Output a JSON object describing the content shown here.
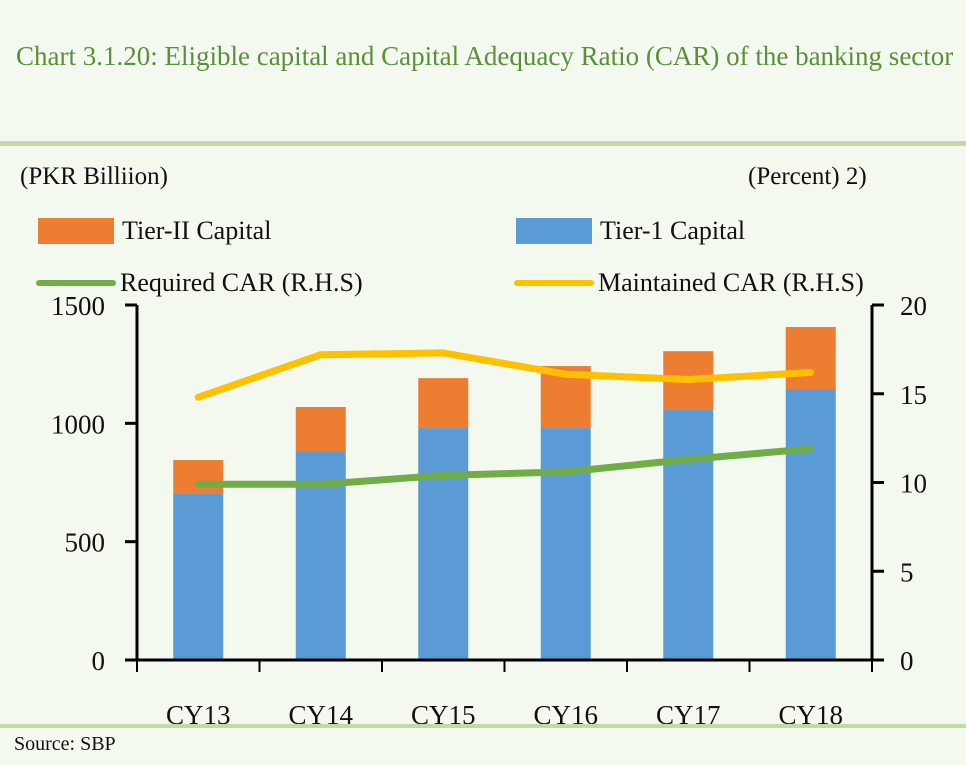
{
  "chart_data": {
    "type": "bar",
    "title": "Chart 3.1.20: Eligible capital and Capital Adequacy Ratio (CAR) of the banking sector",
    "ylabel_left": "(PKR Billiion)",
    "ylabel_right": "(Percent) 2)",
    "categories": [
      "CY13",
      "CY14",
      "CY15",
      "CY16",
      "CY17",
      "CY18"
    ],
    "left_axis": {
      "ylim": [
        0,
        1500
      ],
      "ticks": [
        "0",
        "500",
        "1000",
        "1500"
      ]
    },
    "right_axis": {
      "ylim": [
        0,
        20
      ],
      "ticks": [
        "0",
        "5",
        "10",
        "15",
        "20"
      ]
    },
    "series": [
      {
        "name": "Tier-1 Capital",
        "type": "bar",
        "stack": true,
        "axis": "left",
        "color": "#5b9bd5",
        "values": [
          705,
          883,
          980,
          980,
          1056,
          1145
        ]
      },
      {
        "name": "Tier-II Capital",
        "type": "bar",
        "stack": true,
        "axis": "left",
        "color": "#ed7d31",
        "values": [
          140,
          186,
          211,
          262,
          249,
          262
        ]
      },
      {
        "name": "Required CAR (R.H.S)",
        "type": "line",
        "axis": "right",
        "color": "#70ad47",
        "values": [
          9.9,
          9.9,
          10.4,
          10.6,
          11.3,
          11.9
        ]
      },
      {
        "name": "Maintained CAR (R.H.S)",
        "type": "line",
        "axis": "right",
        "color": "#ffc000",
        "values": [
          14.8,
          17.2,
          17.3,
          16.1,
          15.8,
          16.2
        ]
      }
    ],
    "legend": [
      {
        "label": "Tier-II Capital",
        "kind": "box",
        "color": "#ed7d31"
      },
      {
        "label": "Tier-1 Capital",
        "kind": "box",
        "color": "#5b9bd5"
      },
      {
        "label": "Required CAR (R.H.S)",
        "kind": "line",
        "color": "#70ad47"
      },
      {
        "label": "Maintained CAR (R.H.S)",
        "kind": "line",
        "color": "#ffc000"
      }
    ],
    "legend_position": "top",
    "grid": false
  },
  "source": "Source:  SBP"
}
